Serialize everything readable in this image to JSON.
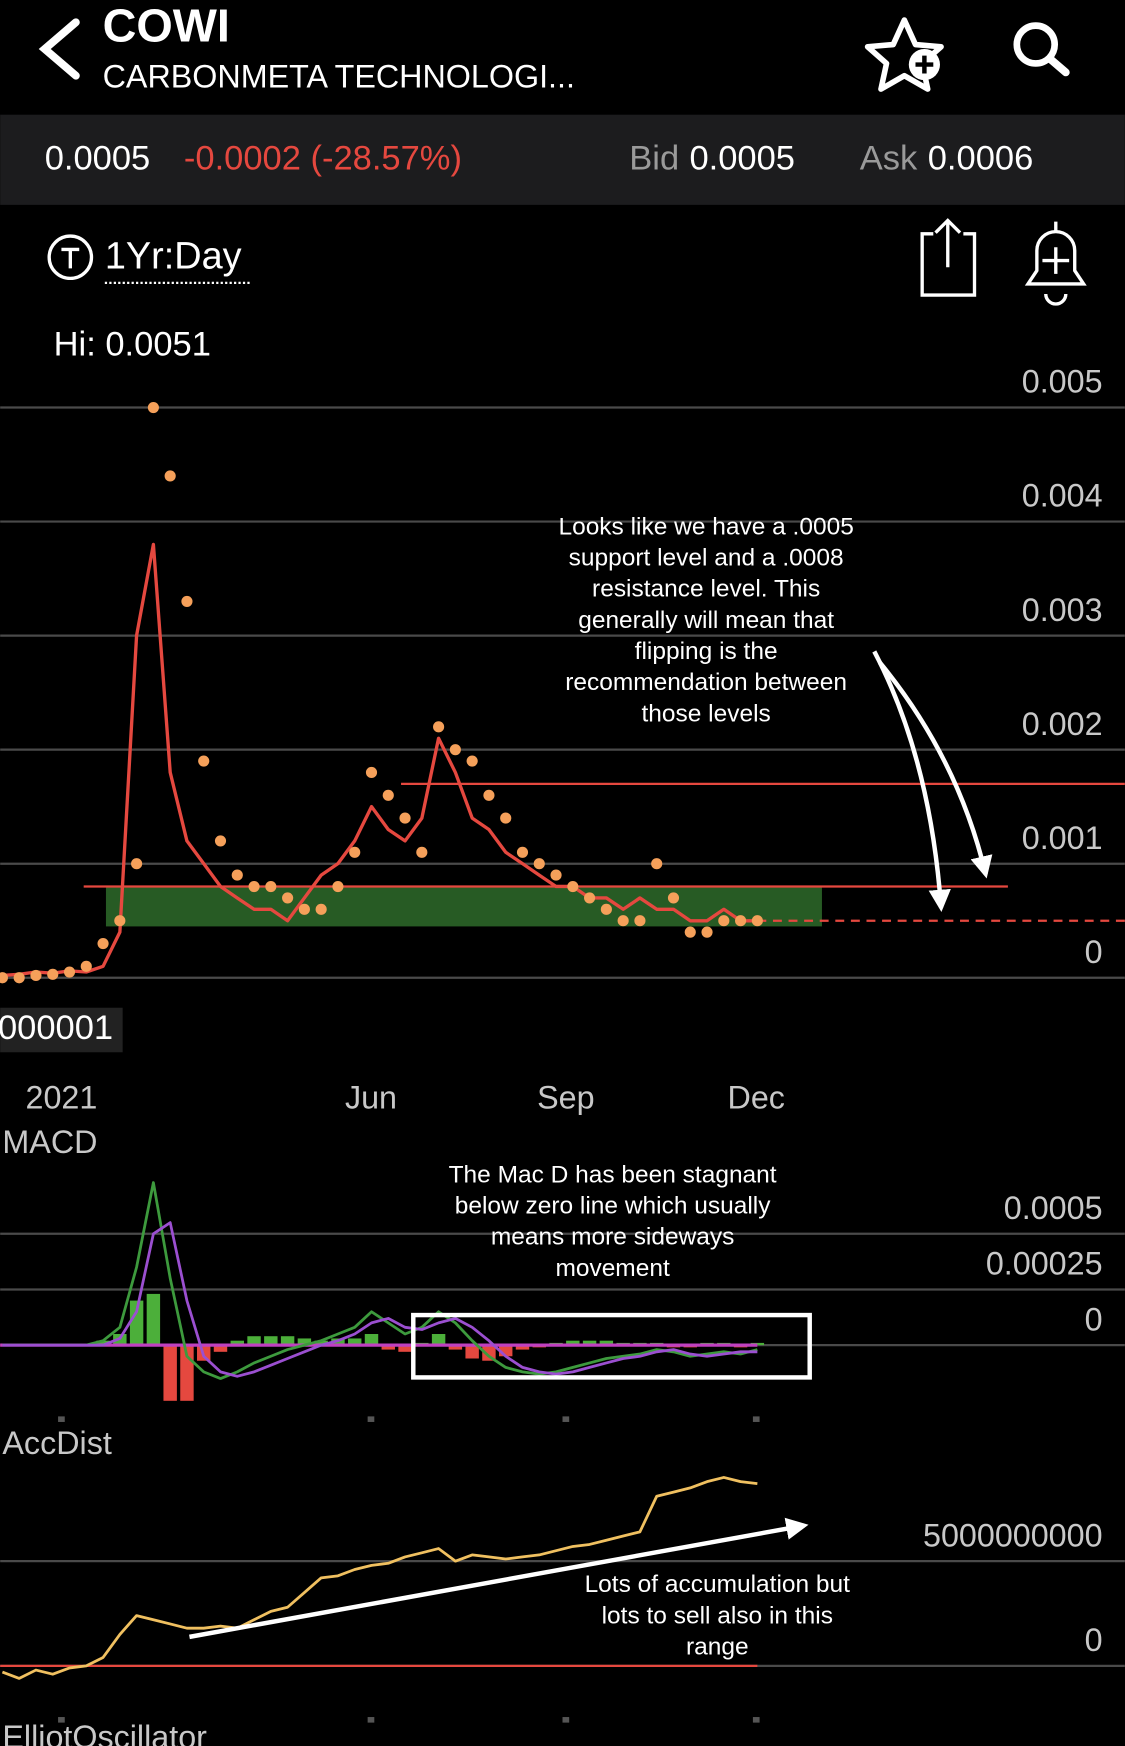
{
  "header": {
    "symbol": "COWI",
    "name": "CARBONMETA TECHNOLOGI..."
  },
  "quote": {
    "price": "0.0005",
    "change": "-0.0002 (-28.57%)",
    "bid_label": "Bid",
    "bid": "0.0005",
    "ask_label": "Ask",
    "ask": "0.0006"
  },
  "range": "1Yr:Day",
  "main": {
    "hi_label": "Hi: 0.0051",
    "volume_label": "000001",
    "ylim": [
      -0.0008,
      0.0052
    ],
    "yticks": [
      0.005,
      0.004,
      0.003,
      0.002,
      0.001,
      0
    ],
    "x_labels": [
      "2021",
      "Jun",
      "Sep",
      "Dec"
    ],
    "price": {
      "color": "#e5483f",
      "values": [
        2e-05,
        3e-05,
        5e-05,
        4e-05,
        6e-05,
        5e-05,
        0.0001,
        0.0004,
        0.003,
        0.0038,
        0.0018,
        0.0012,
        0.001,
        0.0008,
        0.0007,
        0.0006,
        0.0006,
        0.0005,
        0.0007,
        0.0009,
        0.001,
        0.0012,
        0.0015,
        0.0013,
        0.0012,
        0.0014,
        0.0021,
        0.0018,
        0.0014,
        0.0013,
        0.0011,
        0.001,
        0.0009,
        0.0008,
        0.0008,
        0.0007,
        0.0007,
        0.0006,
        0.0007,
        0.0006,
        0.0006,
        0.0005,
        0.0005,
        0.0006,
        0.0005,
        0.0005
      ]
    },
    "sar": {
      "color": "#f5a05a",
      "values": [
        0,
        0,
        2e-05,
        3e-05,
        5e-05,
        0.0001,
        0.0003,
        0.0005,
        0.001,
        0.005,
        0.0044,
        0.0033,
        0.0019,
        0.0012,
        0.0009,
        0.0008,
        0.0008,
        0.0007,
        0.0006,
        0.0006,
        0.0008,
        0.0011,
        0.0018,
        0.0016,
        0.0014,
        0.0011,
        0.0022,
        0.002,
        0.0019,
        0.0016,
        0.0014,
        0.0011,
        0.001,
        0.0009,
        0.0008,
        0.0007,
        0.0006,
        0.0005,
        0.0005,
        0.001,
        0.0007,
        0.0004,
        0.0004,
        0.0005,
        0.0005,
        0.0005
      ]
    },
    "resistance": 0.0017,
    "support_zone": [
      0.00045,
      0.0008
    ],
    "last": 0.0005,
    "note": [
      "Looks like we have a .0005",
      "support level and a .0008",
      "resistance level. This",
      "generally will mean that",
      "flipping is the",
      "recommendation between",
      "those levels"
    ]
  },
  "macd": {
    "title": "MACD",
    "ylim": [
      -0.0003,
      0.00075
    ],
    "yticks": [
      0.0005,
      0.00025,
      0
    ],
    "macd": {
      "color": "#3d9a3d",
      "values": [
        0,
        0,
        0,
        0,
        0,
        0,
        2e-05,
        8e-05,
        0.00035,
        0.00073,
        0.0003,
        -5e-05,
        -0.00012,
        -0.00015,
        -0.00012,
        -8e-05,
        -5e-05,
        -2e-05,
        0,
        2e-05,
        5e-05,
        8e-05,
        0.00015,
        0.0001,
        5e-05,
        8e-05,
        0.00015,
        0.0001,
        2e-05,
        -5e-05,
        -0.0001,
        -0.00012,
        -0.00013,
        -0.00012,
        -0.0001,
        -8e-05,
        -6e-05,
        -5e-05,
        -4e-05,
        -2e-05,
        -3e-05,
        -5e-05,
        -4e-05,
        -3e-05,
        -4e-05,
        -2e-05
      ]
    },
    "signal": {
      "color": "#9b4fd0",
      "values": [
        0,
        0,
        0,
        0,
        0,
        0,
        0,
        3e-05,
        0.00015,
        0.0005,
        0.00055,
        0.0002,
        -5e-05,
        -0.00012,
        -0.00014,
        -0.00012,
        -9e-05,
        -6e-05,
        -3e-05,
        0,
        2e-05,
        5e-05,
        0.0001,
        0.00012,
        8e-05,
        7e-05,
        0.0001,
        0.00012,
        8e-05,
        2e-05,
        -5e-05,
        -0.0001,
        -0.00012,
        -0.00013,
        -0.00012,
        -0.0001,
        -8e-05,
        -6e-05,
        -5e-05,
        -3e-05,
        -2e-05,
        -4e-05,
        -5e-05,
        -4e-05,
        -3e-05,
        -3e-05
      ]
    },
    "histogram": {
      "up_color": "#4caf3a",
      "down_color": "#e5483f",
      "values": [
        0,
        0,
        0,
        0,
        0,
        0,
        2e-05,
        5e-05,
        0.0002,
        0.00023,
        -0.00025,
        -0.00025,
        -7e-05,
        -3e-05,
        2e-05,
        4e-05,
        4e-05,
        4e-05,
        3e-05,
        2e-05,
        3e-05,
        3e-05,
        5e-05,
        -2e-05,
        -3e-05,
        1e-05,
        5e-05,
        -2e-05,
        -6e-05,
        -7e-05,
        -5e-05,
        -2e-05,
        -1e-05,
        1e-05,
        2e-05,
        2e-05,
        2e-05,
        1e-05,
        1e-05,
        1e-05,
        -1e-05,
        -1e-05,
        1e-05,
        1e-05,
        -1e-05,
        1e-05
      ]
    },
    "note": [
      "The Mac D has been stagnant",
      "below zero line which usually",
      "means more sideways",
      "movement"
    ]
  },
  "accdist": {
    "title": "AccDist",
    "ylim": [
      -1000000000,
      11000000000
    ],
    "yticks": [
      5000000000,
      0
    ],
    "color": "#f0c060",
    "values": [
      -300000000,
      -600000000,
      -200000000,
      -400000000,
      -100000000,
      0,
      400000000,
      1500000000,
      2400000000,
      2200000000,
      2000000000,
      1800000000,
      1800000000,
      1900000000,
      1800000000,
      2200000000,
      2600000000,
      2800000000,
      3500000000,
      4200000000,
      4300000000,
      4600000000,
      4800000000,
      4900000000,
      5200000000,
      5400000000,
      5600000000,
      5000000000,
      5300000000,
      5200000000,
      5100000000,
      5200000000,
      5300000000,
      5500000000,
      5700000000,
      5800000000,
      6000000000,
      6200000000,
      6400000000,
      8100000000,
      8300000000,
      8500000000,
      8800000000,
      9000000000,
      8800000000,
      8700000000
    ],
    "note": [
      "Lots of accumulation but",
      "lots to sell also in this",
      "range"
    ]
  },
  "next_panel": "ElliotOscillator"
}
